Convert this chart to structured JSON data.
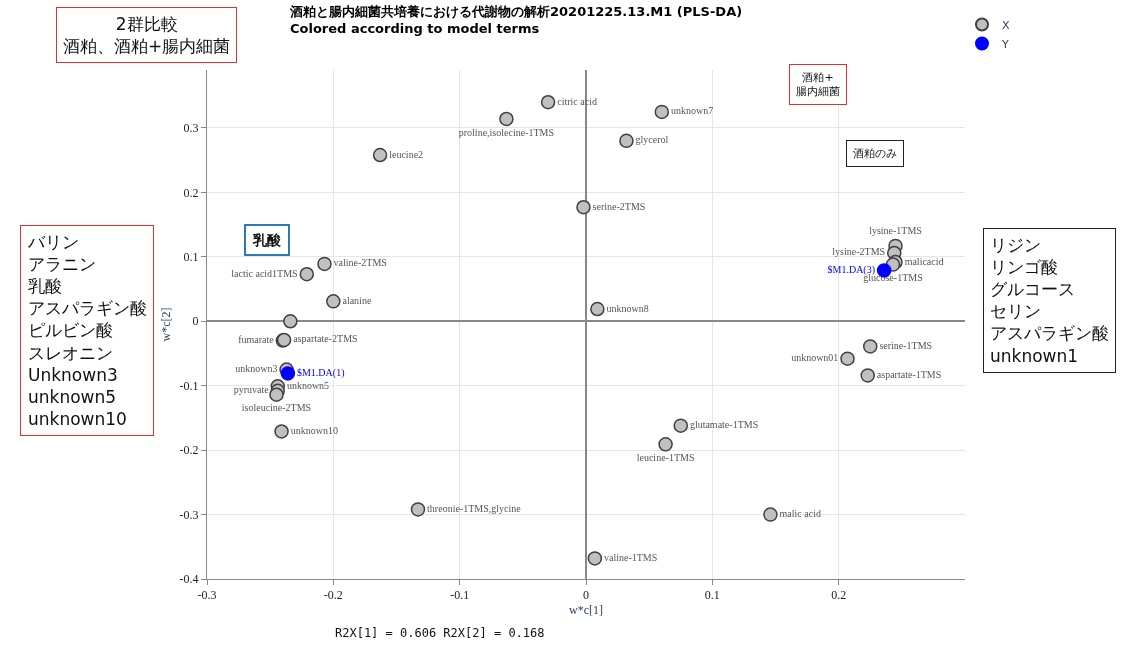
{
  "chart_data": {
    "type": "scatter",
    "title": "酒粕と腸内細菌共培養における代謝物の解析20201225.13.M1 (PLS-DA)",
    "subtitle": "Colored according to model terms",
    "xlabel": "w*c[1]",
    "ylabel": "w*c[2]",
    "xlim": [
      -0.3,
      0.3
    ],
    "ylim": [
      -0.4,
      0.39
    ],
    "xticks": [
      -0.3,
      -0.2,
      -0.1,
      0,
      0.1,
      0.2
    ],
    "yticks": [
      -0.4,
      -0.3,
      -0.2,
      -0.1,
      0,
      0.1,
      0.2,
      0.3
    ],
    "grid": true,
    "legend": "top right",
    "marker": "circle",
    "series": [
      {
        "name": "X",
        "color": "#c0c0c0",
        "x": [
          -0.03,
          -0.063,
          0.06,
          0.032,
          -0.163,
          -0.002,
          -0.207,
          -0.221,
          -0.2,
          -0.234,
          -0.24,
          -0.239,
          -0.237,
          -0.244,
          -0.244,
          -0.245,
          -0.241,
          -0.133,
          0.009,
          0.075,
          0.063,
          0.146,
          0.007,
          0.245,
          0.244,
          0.245,
          0.243,
          0.225,
          0.207,
          0.223
        ],
        "values": [
          0.34,
          0.314,
          0.325,
          0.28,
          0.258,
          0.177,
          0.089,
          0.073,
          0.031,
          0.0,
          -0.03,
          -0.029,
          -0.075,
          -0.101,
          -0.108,
          -0.114,
          -0.171,
          -0.292,
          0.019,
          -0.162,
          -0.191,
          -0.3,
          -0.368,
          0.117,
          0.106,
          0.092,
          0.088,
          -0.039,
          -0.058,
          -0.084
        ],
        "value_labels": [
          "citric acid",
          "proline,isolecine-1TMS",
          "unknown7",
          "glycerol",
          "leucine2",
          "serine-2TMS",
          "valine-2TMS",
          "lactic acid1TMS",
          "alanine",
          null,
          "fumarate",
          "aspartate-2TMS",
          "unknown3",
          "unknown5",
          "pyruvate",
          "isoleucine-2TMS",
          "unknown10",
          "threonie-1TMS,glycine",
          "unknown8",
          "glutamate-1TMS",
          "leucine-1TMS",
          "malic acid",
          "valine-1TMS",
          "lysine-1TMS",
          "lysine-2TMS",
          "malicacid",
          "glucose-1TMS",
          "serine-1TMS",
          "unknown01",
          "aspartate-1TMS"
        ]
      },
      {
        "name": "Y",
        "color": "#0000ff",
        "x": [
          -0.236,
          0.236
        ],
        "values": [
          -0.081,
          0.079
        ],
        "value_labels": [
          "$M1.DA(1)",
          "$M1.DA(3)"
        ]
      }
    ],
    "annotations": [
      "2群比較",
      "酒粕、酒粕+腸内細菌",
      "バリン",
      "アラニン",
      "乳酸",
      "アスパラギン酸",
      "ピルビン酸",
      "スレオニン",
      "Unknown3",
      "unknown5",
      "unknown10",
      "リジン",
      "リンゴ酸",
      "グルコース",
      "セリン",
      "アスパラギン酸",
      "unknown1",
      "乳酸",
      "酒粕+",
      "腸内細菌",
      "酒粕のみ",
      "R2X[1] = 0.606 R2X[2] = 0.168"
    ]
  }
}
